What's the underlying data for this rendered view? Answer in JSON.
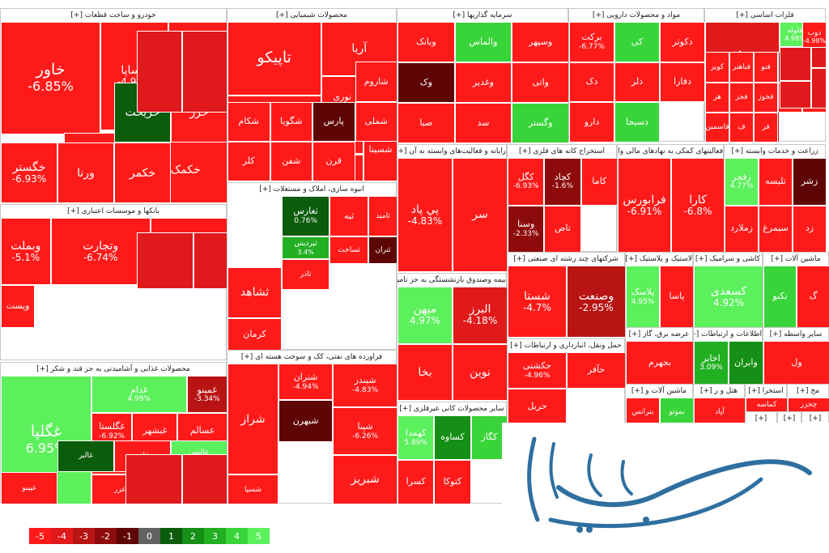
{
  "watermark_text": "سرمایه ایرانی",
  "chart_data": {
    "type": "treemap",
    "legend": {
      "values": [
        "-5",
        "-4",
        "-3",
        "-2",
        "-1",
        "0",
        "1",
        "2",
        "3",
        "4",
        "5"
      ],
      "colors": [
        "#ff1a1a",
        "#e01a1a",
        "#b81414",
        "#8e0b0b",
        "#5e0505",
        "#626262",
        "#0b5c0b",
        "#158f15",
        "#22b022",
        "#39d439",
        "#5cf05c"
      ]
    },
    "groups": [
      {
        "label": "فلزات اساسی [+]",
        "tiles": [
          {
            "name": "فولاد",
            "change": "-4.24%",
            "c": -4.24
          },
          {
            "name": "فلوله",
            "change": "4.98%",
            "c": 4.98
          },
          {
            "name": "میدکو",
            "change": "-2.91%",
            "c": -2.91
          },
          {
            "name": "فملی",
            "change": "-3.06%",
            "c": -3.06
          },
          {
            "name": "ذوب",
            "change": "-4.98%",
            "c": -4.98
          },
          {
            "name": "کویر",
            "change": "",
            "c": -4.5
          },
          {
            "name": "فباهنر",
            "change": "",
            "c": -4.5
          },
          {
            "name": "فنو",
            "change": "",
            "c": -4.5
          },
          {
            "name": "فیتا",
            "change": "",
            "c": -1
          },
          {
            "name": "فروژ",
            "change": "",
            "c": -4.5
          },
          {
            "name": "هر",
            "change": "",
            "c": -4.5
          },
          {
            "name": "فجر",
            "change": "",
            "c": -4.5
          },
          {
            "name": "فخوز",
            "change": "",
            "c": -4.5
          },
          {
            "name": "ف",
            "change": "",
            "c": -4.5
          },
          {
            "name": "فر",
            "change": "",
            "c": -4.5
          },
          {
            "name": "فاسمین",
            "change": "",
            "c": -4.5
          },
          {
            "name": "ف",
            "change": "",
            "c": -4.5
          },
          {
            "name": "فر",
            "change": "",
            "c": -4.5
          }
        ]
      },
      {
        "label": "خودرو و ساخت قطعات [+]",
        "tiles": [
          {
            "name": "خاور",
            "change": "-6.85%",
            "c": -6.85
          },
          {
            "name": "خساپا",
            "change": "-4.99%",
            "c": -4.99
          },
          {
            "name": "خودرو",
            "change": "",
            "c": -4.5
          },
          {
            "name": "خنصیر",
            "change": "",
            "c": -4.5
          },
          {
            "name": "ختوقا",
            "change": "",
            "c": -4.5
          },
          {
            "name": "خکمک",
            "change": "",
            "c": -4.5
          },
          {
            "name": "خریخت",
            "change": "",
            "c": 1
          },
          {
            "name": "خزر",
            "change": "",
            "c": -4.5
          },
          {
            "name": "خگستر",
            "change": "-6.93%",
            "c": -6.93
          },
          {
            "name": "ورنا",
            "change": "",
            "c": -4.5
          },
          {
            "name": "خکمر",
            "change": "",
            "c": -4.5
          }
        ]
      },
      {
        "label": "بانکها و موسسات اعتباری [+]",
        "tiles": [
          {
            "name": "وبملت",
            "change": "-5.1%",
            "c": -5.1
          },
          {
            "name": "وتجارت",
            "change": "-6.74%",
            "c": -6.74
          },
          {
            "name": "وبصادر",
            "change": "",
            "c": -4.5
          },
          {
            "name": "وپست",
            "change": "",
            "c": -4.5
          }
        ]
      },
      {
        "label": "محصولات غذایی و آشامیدنی به جز قند و شکر [+]",
        "tiles": [
          {
            "name": "غگلپا",
            "change": "6.95%",
            "c": 6.95
          },
          {
            "name": "غدام",
            "change": "4.99%",
            "c": 4.99
          },
          {
            "name": "غمینو",
            "change": "-3.34%",
            "c": -3.34
          },
          {
            "name": "غگلستا",
            "change": "-6.92%",
            "c": -6.92
          },
          {
            "name": "غبشهر",
            "change": "",
            "c": -4.5
          },
          {
            "name": "عسالم",
            "change": "",
            "c": -4.5
          },
          {
            "name": "غکو",
            "change": "",
            "c": -4.5
          },
          {
            "name": "غگل",
            "change": "",
            "c": -4.5
          },
          {
            "name": "غزر",
            "change": "",
            "c": -4.5
          },
          {
            "name": "غالبر",
            "change": "",
            "c": 1
          },
          {
            "name": "غاذر",
            "change": "",
            "c": -4.5
          },
          {
            "name": "عالیس",
            "change": "4.85%",
            "c": 4.85
          },
          {
            "name": "غپینو",
            "change": "",
            "c": -4.5
          }
        ]
      },
      {
        "label": "محصولات شیمیایی [+]",
        "tiles": [
          {
            "name": "آریا",
            "change": "",
            "c": -4.5
          },
          {
            "name": "تاپیکو",
            "change": "",
            "c": -4.5
          },
          {
            "name": "نوری",
            "change": "",
            "c": -4.5
          },
          {
            "name": "زاگر",
            "change": "",
            "c": -4.5
          },
          {
            "name": "شپدیس",
            "change": "-6.99%",
            "c": -6.99
          },
          {
            "name": "بوعلی",
            "change": "",
            "c": -4.5
          },
          {
            "name": "شسینا",
            "change": "",
            "c": -4.5
          },
          {
            "name": "شاروم",
            "change": "",
            "c": -4.5
          },
          {
            "name": "شکام",
            "change": "",
            "c": -4.5
          },
          {
            "name": "شگویا",
            "change": "",
            "c": -4.5
          },
          {
            "name": "پارس",
            "change": "",
            "c": -1
          },
          {
            "name": "شملی",
            "change": "",
            "c": -4.5
          },
          {
            "name": "کلر",
            "change": "",
            "c": -4.5
          },
          {
            "name": "شفن",
            "change": "",
            "c": -4.5
          },
          {
            "name": "قرن",
            "change": "",
            "c": -4.5
          }
        ]
      },
      {
        "label": "انبوه سازی، املاک و مستغلات [+]",
        "tiles": [
          {
            "name": "ثغارس",
            "change": "0.76%",
            "c": 0.76
          },
          {
            "name": "ثپردیس",
            "change": "3.4%",
            "c": 3.4
          },
          {
            "name": "ثبه",
            "change": "",
            "c": -4.5
          },
          {
            "name": "ثامید",
            "change": "",
            "c": -4.5
          },
          {
            "name": "ثساخت",
            "change": "",
            "c": -4.5
          },
          {
            "name": "ثتران",
            "change": "",
            "c": -1
          },
          {
            "name": "ثشاهد",
            "change": "",
            "c": -4.5
          },
          {
            "name": "ثاذر",
            "change": "",
            "c": -4.5
          },
          {
            "name": "کرمان",
            "change": "",
            "c": -4.5
          }
        ]
      },
      {
        "label": "فراورده های نفتی، کک و سوخت هسته ای [+]",
        "tiles": [
          {
            "name": "شبندر",
            "change": "-4.83%",
            "c": -4.83
          },
          {
            "name": "شپنا",
            "change": "-6.26%",
            "c": -6.26
          },
          {
            "name": "شبریز",
            "change": "",
            "c": -4.5
          },
          {
            "name": "شتران",
            "change": "-4.94%",
            "c": -4.94
          },
          {
            "name": "شبهرن",
            "change": "",
            "c": -1
          },
          {
            "name": "شسپا",
            "change": "",
            "c": -4.5
          },
          {
            "name": "شراز",
            "change": "",
            "c": -4.5
          }
        ]
      },
      {
        "label": "سرمایه گذاریها [+]",
        "tiles": [
          {
            "name": "وبانک",
            "change": "",
            "c": -4.5
          },
          {
            "name": "والماس",
            "change": "",
            "c": 4.5
          },
          {
            "name": "وسپهر",
            "change": "",
            "c": -4.5
          },
          {
            "name": "وک",
            "change": "",
            "c": -1
          },
          {
            "name": "وغدیر",
            "change": "",
            "c": -4.5
          },
          {
            "name": "واتی",
            "change": "",
            "c": -4.5
          },
          {
            "name": "صبا",
            "change": "",
            "c": -4.5
          },
          {
            "name": "سد",
            "change": "",
            "c": -4.5
          },
          {
            "name": "وگستر",
            "change": "",
            "c": 4.5
          }
        ]
      },
      {
        "label": "مواد و محصولات دارویی [+]",
        "tiles": [
          {
            "name": "برکت",
            "change": "-6.77%",
            "c": -6.77
          },
          {
            "name": "کی",
            "change": "",
            "c": 4.5
          },
          {
            "name": "دکوثر",
            "change": "",
            "c": -4.5
          },
          {
            "name": "دک",
            "change": "",
            "c": -4.5
          },
          {
            "name": "دلر",
            "change": "",
            "c": -4.5
          },
          {
            "name": "دفارا",
            "change": "",
            "c": -4.5
          },
          {
            "name": "دارو",
            "change": "",
            "c": -4.5
          },
          {
            "name": "دسبحا",
            "change": "",
            "c": 4.5
          }
        ]
      },
      {
        "label": "رایانه و فعالیت‌های وابسته به آن [+]",
        "tiles": [
          {
            "name": "پي پاد",
            "change": "-4.83%",
            "c": -4.83
          },
          {
            "name": "سر",
            "change": "",
            "c": -4.5
          }
        ]
      },
      {
        "label": "بیمه وصندوق بازنشستگی به جز تامین اجتماعی [+]",
        "tiles": [
          {
            "name": "میهن",
            "change": "4.97%",
            "c": 4.97
          },
          {
            "name": "البرز",
            "change": "-4.18%",
            "c": -4.18
          },
          {
            "name": "بخا",
            "change": "",
            "c": -4.5
          },
          {
            "name": "نوین",
            "change": "",
            "c": -4.5
          }
        ]
      },
      {
        "label": "سایر محصولات کانی غیرفلزی [+]",
        "tiles": [
          {
            "name": "کهمدا",
            "change": "5.89%",
            "c": 5.89
          },
          {
            "name": "کساوه",
            "change": "",
            "c": 2
          },
          {
            "name": "کگاز",
            "change": "",
            "c": 4.5
          },
          {
            "name": "کسرا",
            "change": "",
            "c": -4.5
          },
          {
            "name": "کتوکا",
            "change": "",
            "c": -4.5
          }
        ]
      },
      {
        "label": "استخراج کانه های فلزی [+]",
        "tiles": [
          {
            "name": "کگل",
            "change": "-6.93%",
            "c": -6.93
          },
          {
            "name": "کچاد",
            "change": "-1.6%",
            "c": -1.6
          },
          {
            "name": "کاما",
            "change": "",
            "c": -4.5
          },
          {
            "name": "وسنا",
            "change": "-2.33%",
            "c": -2.33
          },
          {
            "name": "تاص",
            "change": "",
            "c": -4.5
          }
        ]
      },
      {
        "label": "فعالیتهای کمکی به نهادهای مالی واسط [+]",
        "tiles": [
          {
            "name": "فرابورس",
            "change": "-6.91%",
            "c": -6.91
          },
          {
            "name": "کارا",
            "change": "-6.8%",
            "c": -6.8
          }
        ]
      },
      {
        "label": "زراعت و خدمات وابسته [+]",
        "tiles": [
          {
            "name": "زفجر",
            "change": "4.77%",
            "c": 4.77
          },
          {
            "name": "تلیسه",
            "change": "",
            "c": -4.5
          },
          {
            "name": "زشر",
            "change": "",
            "c": -1
          },
          {
            "name": "زملارد",
            "change": "",
            "c": -4.5
          },
          {
            "name": "سیمرغ",
            "change": "",
            "c": -4.5
          },
          {
            "name": "زد",
            "change": "",
            "c": -4.5
          }
        ]
      },
      {
        "label": "شرکتهای چند رشته ای صنعتی [+]",
        "tiles": [
          {
            "name": "شستا",
            "change": "-4.7%",
            "c": -4.7
          },
          {
            "name": "وصنعت",
            "change": "-2.95%",
            "c": -2.95
          }
        ]
      },
      {
        "label": "حمل ونقل، انبارداری و ارتباطات [+]",
        "tiles": [
          {
            "name": "حکشتی",
            "change": "-4.96%",
            "c": -4.96
          },
          {
            "name": "حآفر",
            "change": "",
            "c": -4.5
          },
          {
            "name": "حریل",
            "change": "",
            "c": -4.5
          }
        ]
      },
      {
        "label": "لاستیک و پلاستیک [+]",
        "tiles": [
          {
            "name": "پلاسک",
            "change": "4.95%",
            "c": 4.95
          },
          {
            "name": "پاسا",
            "change": "",
            "c": -4.5
          }
        ]
      },
      {
        "label": "کاشی و سرامیک [+]",
        "tiles": [
          {
            "name": "کسعدی",
            "change": "4.92%",
            "c": 4.92
          }
        ]
      },
      {
        "label": "ماشین آلات [+]",
        "tiles": [
          {
            "name": "تکنو",
            "change": "",
            "c": 4.5
          },
          {
            "name": "گ",
            "change": "",
            "c": -4.5
          }
        ]
      },
      {
        "label": "عرضه برق، گاز [+]",
        "tiles": [
          {
            "name": "بجهرم",
            "change": "",
            "c": -4.5
          }
        ]
      },
      {
        "label": "اطلاعات و ارتباطات [+]",
        "tiles": [
          {
            "name": "اخابر",
            "change": "3.09%",
            "c": 3.09
          },
          {
            "name": "وایران",
            "change": "",
            "c": 2
          }
        ]
      },
      {
        "label": "سایر واسطه [+]",
        "tiles": [
          {
            "name": "ول",
            "change": "",
            "c": -4.5
          }
        ]
      },
      {
        "label": "ماشین آلات و [+]",
        "tiles": [
          {
            "name": "بترانس",
            "change": "",
            "c": -4.5
          },
          {
            "name": "بموتو",
            "change": "",
            "c": 4.5
          }
        ]
      },
      {
        "label": "هتل و ر [+]",
        "tiles": [
          {
            "name": "آپاد",
            "change": "",
            "c": -4.5
          }
        ]
      },
      {
        "label": "استخرا [+]",
        "tiles": [
          {
            "name": "کماسه",
            "change": "",
            "c": -4.5
          }
        ]
      },
      {
        "label": "مح [+]",
        "tiles": [
          {
            "name": "چخزر",
            "change": "",
            "c": -4.5
          }
        ]
      },
      {
        "label": "[+]",
        "tiles": []
      },
      {
        "label": "[+]",
        "tiles": []
      },
      {
        "label": "[+]",
        "tiles": []
      }
    ]
  }
}
